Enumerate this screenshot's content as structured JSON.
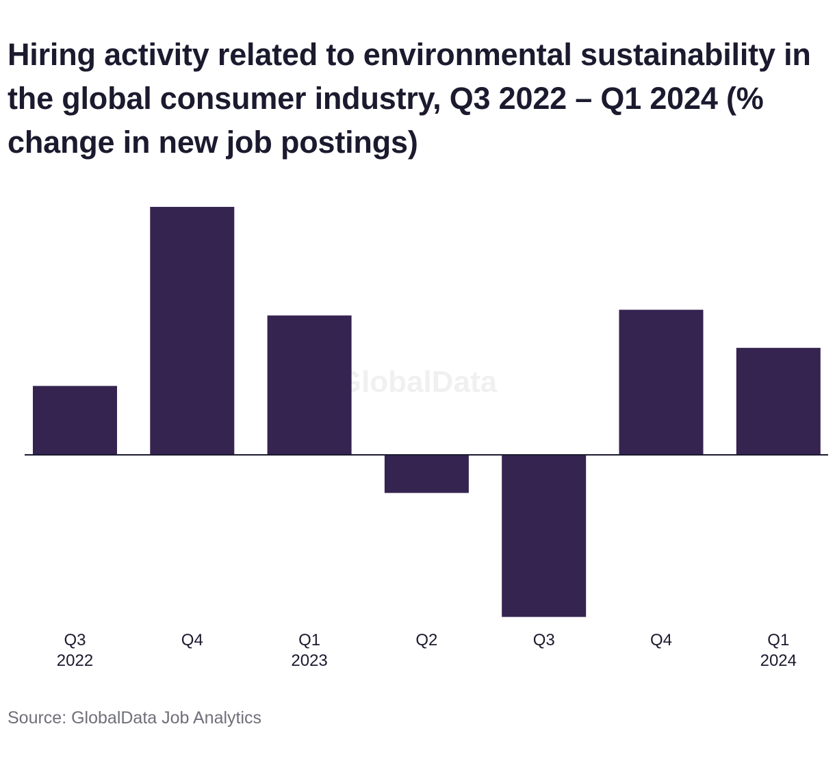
{
  "chart_data": {
    "type": "bar",
    "title": "Hiring activity related to environmental sustainability in the global consumer industry, Q3 2022 – Q1 2024 (% change in new job postings)",
    "categories": [
      {
        "quarter": "Q3",
        "year": "2022"
      },
      {
        "quarter": "Q4",
        "year": ""
      },
      {
        "quarter": "Q1",
        "year": "2023"
      },
      {
        "quarter": "Q2",
        "year": ""
      },
      {
        "quarter": "Q3",
        "year": ""
      },
      {
        "quarter": "Q4",
        "year": ""
      },
      {
        "quarter": "Q1",
        "year": "2024"
      }
    ],
    "values": [
      8.5,
      30.6,
      17.2,
      -4.7,
      -20.0,
      17.9,
      13.2
    ],
    "ylim": [
      -20,
      30.6
    ],
    "xlabel": "",
    "ylabel": "",
    "grid": false,
    "bar_color": "#352350",
    "axis_color": "#1b1a2e"
  },
  "watermark": "GlobalData",
  "source": "Source: GlobalData Job Analytics"
}
